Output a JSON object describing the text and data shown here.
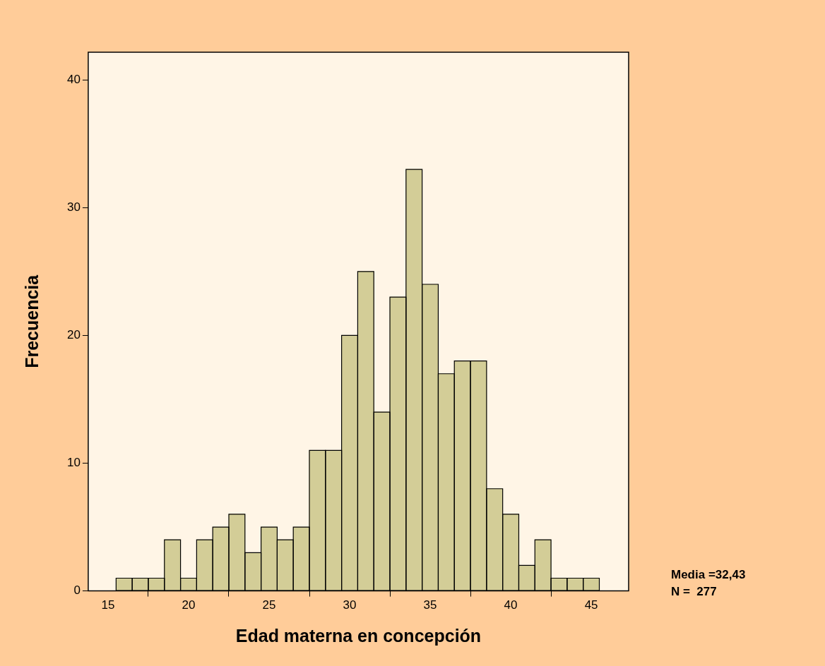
{
  "chart_data": {
    "type": "histogram",
    "xlabel": "Edad materna en concepción",
    "ylabel": "Frecuencia",
    "bins": [
      15.5,
      16.5,
      17.5,
      18.5,
      19.5,
      20.5,
      21.5,
      22.5,
      23.5,
      24.5,
      25.5,
      26.5,
      27.5,
      28.5,
      29.5,
      30.5,
      31.5,
      32.5,
      33.5,
      34.5,
      35.5,
      36.5,
      37.5,
      38.5,
      39.5,
      40.5,
      41.5,
      42.5,
      43.5,
      44.5,
      45.5
    ],
    "values": [
      1,
      1,
      1,
      4,
      1,
      4,
      5,
      6,
      3,
      5,
      4,
      5,
      11,
      11,
      20,
      25,
      14,
      23,
      33,
      24,
      17,
      18,
      18,
      8,
      6,
      2,
      4,
      1,
      1,
      1
    ],
    "color": "#d3cd97",
    "xlim": [
      13.77,
      47.32
    ],
    "xticks": [
      15,
      20,
      25,
      30,
      35,
      40,
      45
    ],
    "ylim": [
      0,
      42.17
    ],
    "yticks": [
      0,
      10,
      20,
      30,
      40
    ],
    "grid": false,
    "legend": false,
    "annotations": [
      "Media =32,43",
      "N =  277"
    ]
  }
}
